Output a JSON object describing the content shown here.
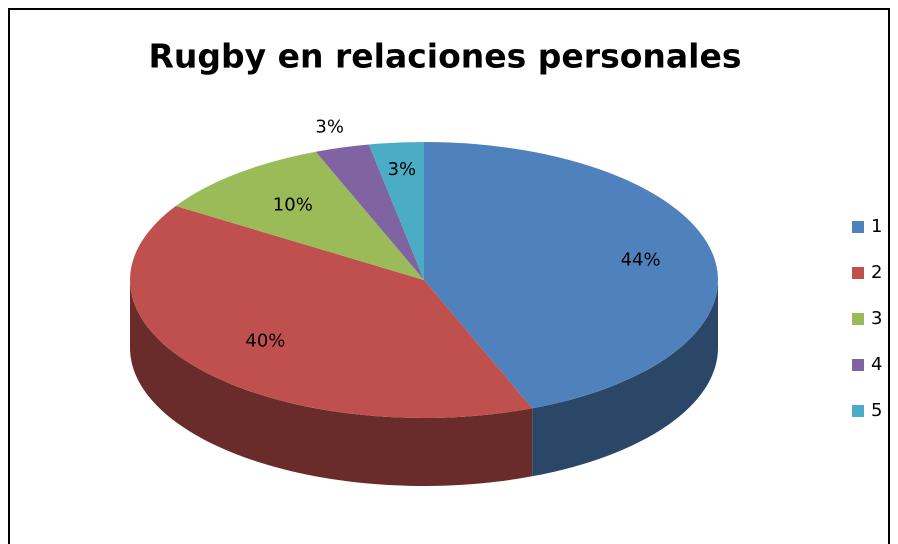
{
  "chart_data": {
    "type": "pie3d",
    "title": "Rugby en relaciones personales",
    "categories": [
      "1",
      "2",
      "3",
      "4",
      "5"
    ],
    "values": [
      44,
      40,
      10,
      3,
      3
    ],
    "value_labels": [
      "44%",
      "40%",
      "10%",
      "3%",
      "3%"
    ],
    "colors": [
      "#4f81bd",
      "#c0504d",
      "#9bbb59",
      "#8064a2",
      "#4bacc6"
    ],
    "legend": "right"
  }
}
